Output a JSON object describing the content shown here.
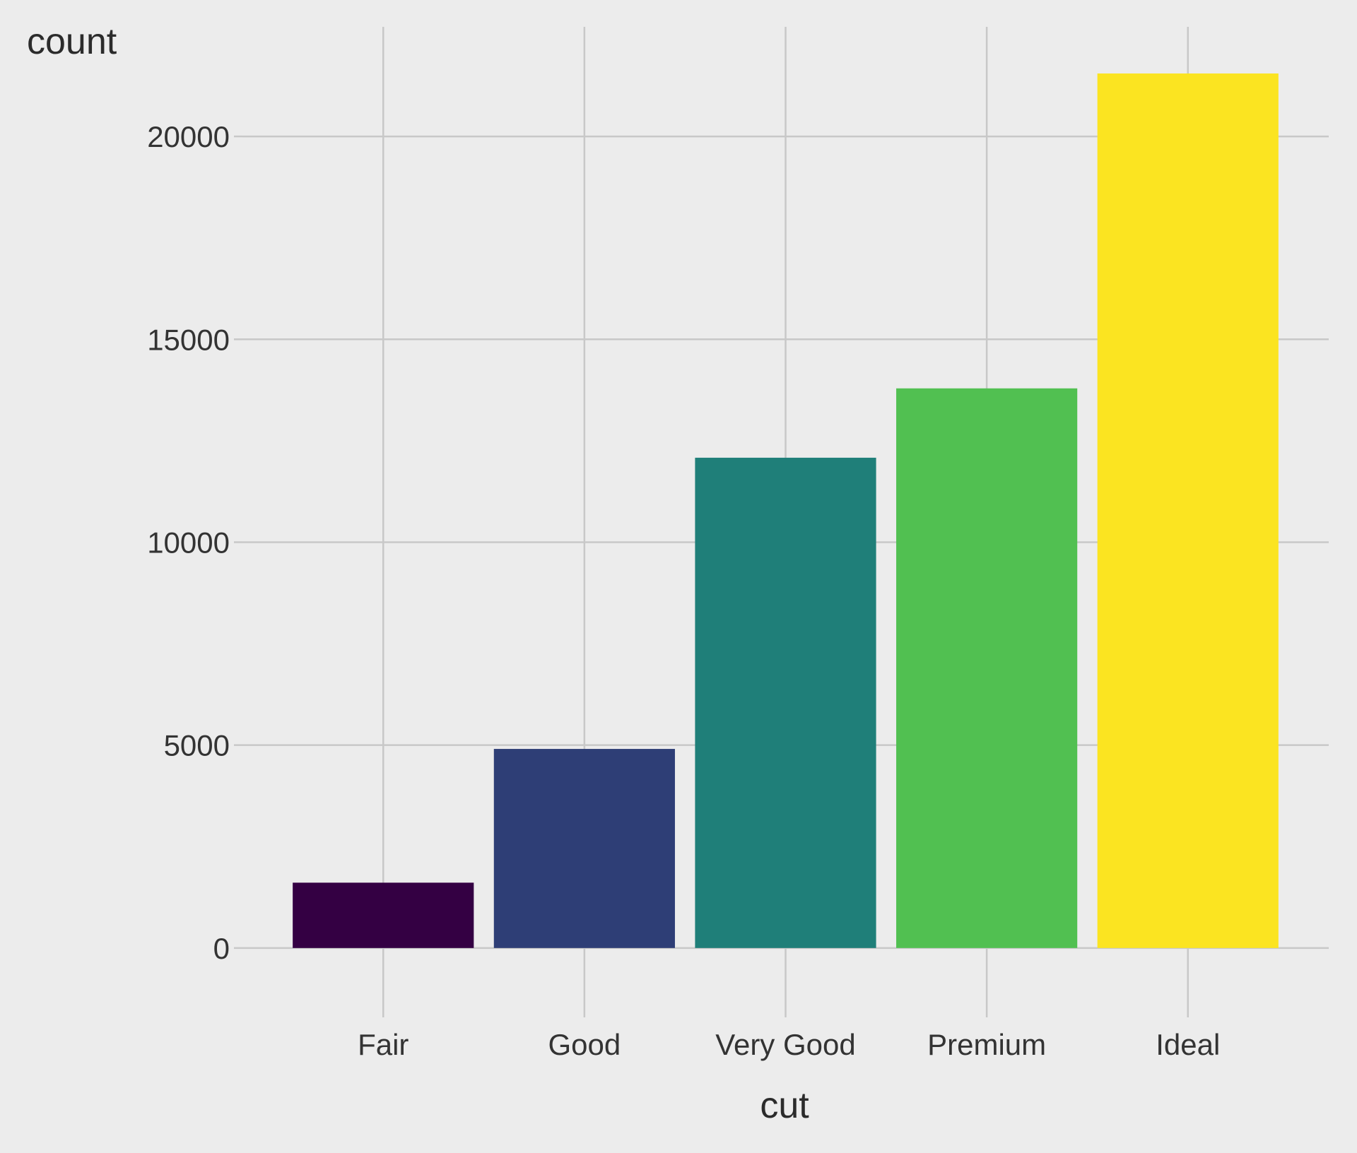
{
  "chart_data": {
    "type": "bar",
    "categories": [
      "Fair",
      "Good",
      "Very Good",
      "Premium",
      "Ideal"
    ],
    "values": [
      1610,
      4906,
      12082,
      13791,
      21551
    ],
    "colors": [
      "#340043",
      "#2e3e76",
      "#1f7f79",
      "#51c051",
      "#fbe421"
    ],
    "xlabel": "cut",
    "ylabel": "count",
    "ylim": [
      -1500,
      22700
    ],
    "yticks": [
      0,
      5000,
      10000,
      15000,
      20000
    ],
    "ytick_labels": [
      "0",
      "5000",
      "10000",
      "15000",
      "20000"
    ],
    "grid": true,
    "background": "#ececec",
    "grid_color": "#c8c8c8"
  }
}
